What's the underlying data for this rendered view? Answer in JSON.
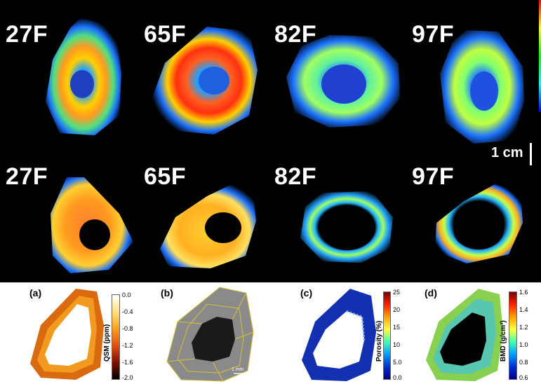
{
  "top_rows": {
    "row1_labels": [
      "27F",
      "65F",
      "82F",
      "97F"
    ],
    "row2_labels": [
      "27F",
      "65F",
      "82F",
      "97F"
    ]
  },
  "scale_bar": {
    "label": "1 cm"
  },
  "panels": [
    {
      "letter": "(a)",
      "colorbar_title": "QSM (ppm)",
      "ticks": [
        "0.0",
        "-0.4",
        "-0.8",
        "-1.2",
        "-1.6",
        "-2.0"
      ]
    },
    {
      "letter": "(b)",
      "scale_label": "1 mm"
    },
    {
      "letter": "(c)",
      "colorbar_title": "Porosity (%)",
      "ticks": [
        "25",
        "20",
        "15",
        "10",
        "5.0",
        "0.0"
      ]
    },
    {
      "letter": "(d)",
      "colorbar_title": "BMD (g/cm³)",
      "ticks": [
        "1.6",
        "1.4",
        "1.2",
        "1.0",
        "0.8",
        "0.6"
      ]
    }
  ],
  "colors": {
    "jet_low": "#00008b",
    "jet_high": "#8b0000",
    "qsm_high": "#ffffff",
    "qsm_low": "#000000"
  }
}
